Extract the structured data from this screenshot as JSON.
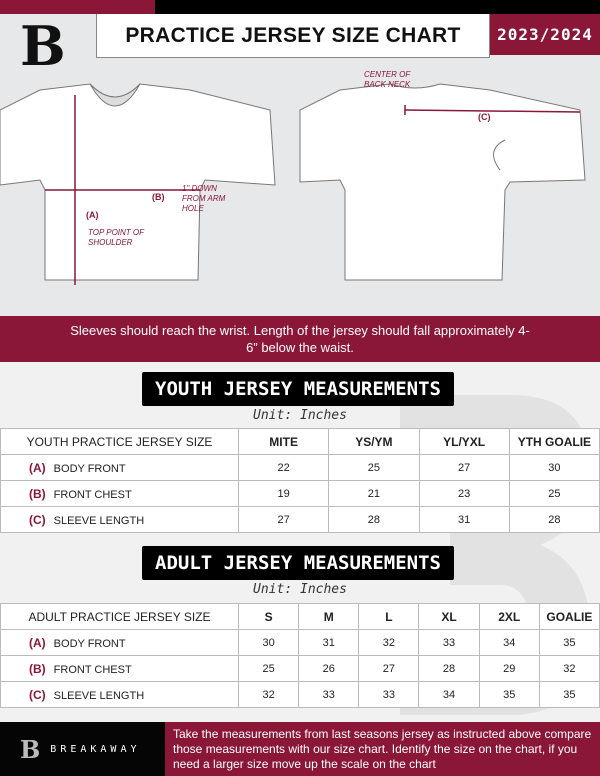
{
  "header": {
    "title": "PRACTICE JERSEY SIZE CHART",
    "season": "2023/2024",
    "logo_letter": "B"
  },
  "diagram": {
    "front_labels": {
      "b": "(B)",
      "b_note": "1\" DOWN FROM ARM HOLE",
      "a": "(A)",
      "a_note": "TOP POINT OF SHOULDER"
    },
    "back_labels": {
      "center": "CENTER OF BACK NECK",
      "c": "(C)"
    }
  },
  "instructions": "Sleeves should reach the wrist. Length of the jersey should fall approximately 4-6” below the waist.",
  "youth": {
    "title": "YOUTH JERSEY MEASUREMENTS",
    "unit": "Unit: Inches",
    "corner": "YOUTH PRACTICE JERSEY SIZE",
    "sizes": [
      "MITE",
      "YS/YM",
      "YL/YXL",
      "YTH GOALIE"
    ],
    "rows": [
      {
        "code": "(A)",
        "label": "BODY FRONT",
        "values": [
          "22",
          "25",
          "27",
          "30"
        ]
      },
      {
        "code": "(B)",
        "label": "FRONT CHEST",
        "values": [
          "19",
          "21",
          "23",
          "25"
        ]
      },
      {
        "code": "(C)",
        "label": "SLEEVE LENGTH",
        "values": [
          "27",
          "28",
          "31",
          "28"
        ]
      }
    ]
  },
  "adult": {
    "title": "ADULT JERSEY MEASUREMENTS",
    "unit": "Unit: Inches",
    "corner": "ADULT PRACTICE JERSEY SIZE",
    "sizes": [
      "S",
      "M",
      "L",
      "XL",
      "2XL",
      "GOALIE"
    ],
    "rows": [
      {
        "code": "(A)",
        "label": "BODY FRONT",
        "values": [
          "30",
          "31",
          "32",
          "33",
          "34",
          "35"
        ]
      },
      {
        "code": "(B)",
        "label": "FRONT CHEST",
        "values": [
          "25",
          "26",
          "27",
          "28",
          "29",
          "32"
        ]
      },
      {
        "code": "(C)",
        "label": "SLEEVE LENGTH",
        "values": [
          "32",
          "33",
          "33",
          "34",
          "35",
          "35"
        ]
      }
    ]
  },
  "footer": {
    "brand": "BREAKAWAY",
    "logo_letter": "B",
    "note": "Take the measurements from last seasons jersey as instructed above compare those measurements  with our size chart. Identify the size on the chart, if you need a larger size move up the scale on the chart"
  },
  "colors": {
    "accent": "#8a1738",
    "dark": "#000000"
  }
}
